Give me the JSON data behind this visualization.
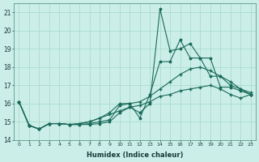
{
  "xlabel": "Humidex (Indice chaleur)",
  "ylabel": "",
  "background_color": "#cceee8",
  "grid_color": "#aaddcc",
  "line_color": "#1a6b5a",
  "x_values": [
    0,
    1,
    2,
    3,
    4,
    5,
    6,
    7,
    8,
    9,
    10,
    11,
    12,
    13,
    14,
    15,
    16,
    17,
    18,
    19,
    20,
    21,
    22,
    23
  ],
  "series_spike": [
    16.1,
    14.8,
    14.6,
    14.9,
    14.9,
    14.85,
    14.85,
    14.85,
    14.9,
    15.0,
    15.5,
    15.8,
    15.5,
    16.0,
    21.2,
    18.9,
    19.0,
    19.3,
    18.5,
    18.5,
    16.9,
    16.9,
    16.7,
    16.5
  ],
  "series_mid": [
    16.1,
    14.8,
    14.6,
    14.9,
    14.9,
    14.85,
    14.85,
    14.9,
    15.0,
    15.1,
    15.9,
    16.0,
    15.2,
    16.5,
    18.3,
    18.3,
    19.5,
    18.5,
    18.5,
    17.5,
    17.5,
    17.0,
    16.8,
    16.5
  ],
  "series_smooth": [
    16.1,
    14.8,
    14.6,
    14.9,
    14.9,
    14.85,
    14.9,
    15.0,
    15.2,
    15.5,
    16.0,
    16.0,
    16.1,
    16.4,
    16.8,
    17.2,
    17.6,
    17.9,
    18.0,
    17.8,
    17.5,
    17.2,
    16.8,
    16.6
  ],
  "series_low": [
    16.1,
    14.8,
    14.6,
    14.9,
    14.9,
    14.85,
    14.9,
    15.0,
    15.2,
    15.4,
    15.6,
    15.8,
    15.9,
    16.1,
    16.4,
    16.5,
    16.7,
    16.8,
    16.9,
    17.0,
    16.8,
    16.5,
    16.3,
    16.5
  ],
  "ylim": [
    14.0,
    21.5
  ],
  "yticks": [
    14,
    15,
    16,
    17,
    18,
    19,
    20,
    21
  ],
  "xlim": [
    -0.5,
    23.5
  ],
  "xticks": [
    0,
    1,
    2,
    3,
    4,
    5,
    6,
    7,
    8,
    9,
    10,
    11,
    12,
    13,
    14,
    15,
    16,
    17,
    18,
    19,
    20,
    21,
    22,
    23
  ]
}
